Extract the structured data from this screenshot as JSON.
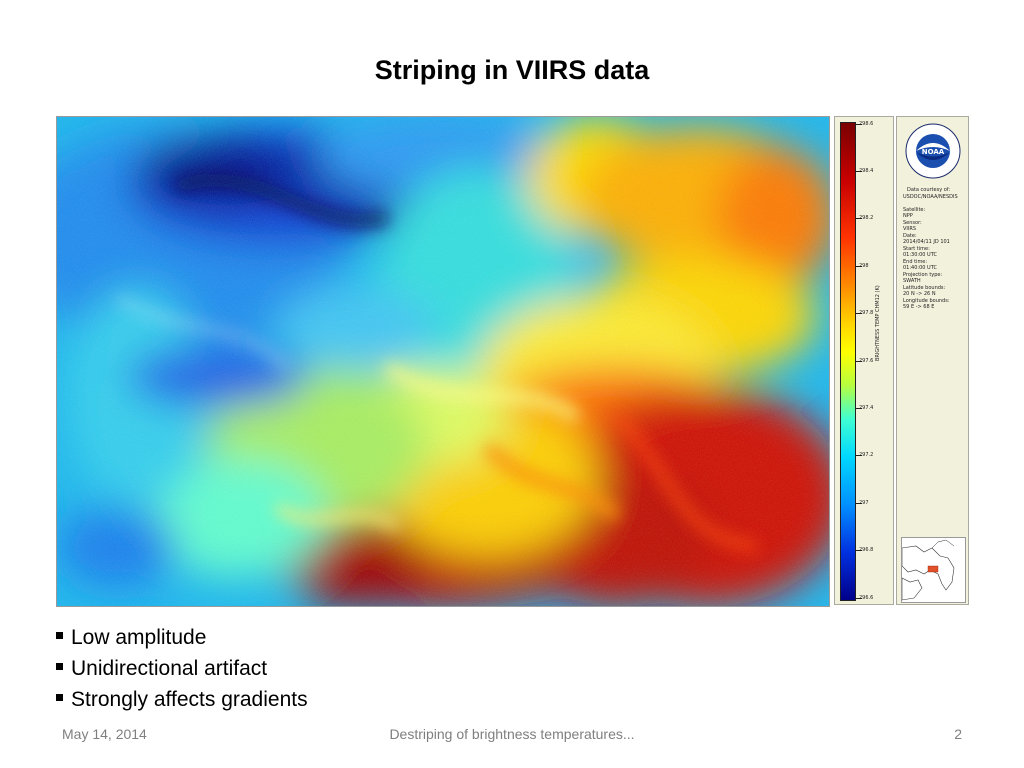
{
  "slide": {
    "title": "Striping in VIIRS data",
    "bullets": [
      "Low amplitude",
      "Unidirectional artifact",
      "Strongly affects gradients"
    ],
    "footer": {
      "date": "May 14, 2014",
      "center": "Destriping of brightness temperatures...",
      "page_number": "2"
    }
  },
  "figure": {
    "colorbar": {
      "ticks": [
        "298.6",
        "298.4",
        "298.2",
        "298",
        "297.8",
        "297.6",
        "297.4",
        "297.2",
        "297",
        "296.8",
        "296.6"
      ],
      "axis_label": "BRIGHTNESS TEMP CHM12 (K)"
    },
    "info_lines": [
      "Data courtesy of:",
      "USDOC/NOAA/NESDIS",
      "Satellite:",
      " NPP",
      "Sensor:",
      " VIIRS",
      "Date:",
      " 2014/04/11 JD 101",
      "Start time:",
      " 01:30:00 UTC",
      "End time:",
      " 01:40:00 UTC",
      "Projection type:",
      " SWATH",
      "Latitude bounds:",
      " 20 N -> 26 N",
      "Longitude bounds:",
      " 59 E -> 68 E"
    ],
    "logo_text": "NOAA",
    "colors": {
      "warm": "#c00000",
      "cool": "#0033cc",
      "panel": "#f2f1dc"
    }
  }
}
